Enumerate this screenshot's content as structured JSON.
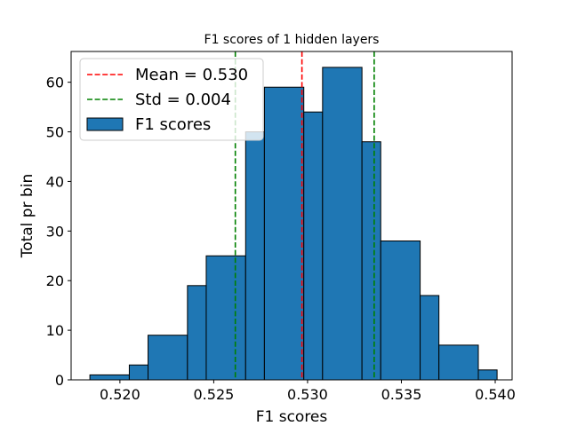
{
  "chart_data": {
    "type": "bar",
    "title": "F1 scores of 1 hidden layers",
    "xlabel": "F1 scores",
    "ylabel": "Total pr bin",
    "xlim": [
      0.5174,
      0.5409
    ],
    "ylim": [
      0,
      66.2
    ],
    "x_ticks": [
      0.52,
      0.525,
      0.53,
      0.535,
      0.54
    ],
    "x_tick_labels": [
      "0.520",
      "0.525",
      "0.530",
      "0.535",
      "0.540"
    ],
    "y_ticks": [
      0,
      10,
      20,
      30,
      40,
      50,
      60
    ],
    "y_tick_labels": [
      "0",
      "10",
      "20",
      "30",
      "40",
      "50",
      "60"
    ],
    "bin_edges": [
      0.5184,
      0.5205,
      0.5215,
      0.5236,
      0.5246,
      0.5267,
      0.5277,
      0.5298,
      0.5308,
      0.5329,
      0.5339,
      0.536,
      0.537,
      0.5391,
      0.5401
    ],
    "bins": [
      {
        "x0": 0.5184,
        "x1": 0.5205,
        "value": 1
      },
      {
        "x0": 0.5205,
        "x1": 0.5215,
        "value": 3
      },
      {
        "x0": 0.5215,
        "x1": 0.5236,
        "value": 9
      },
      {
        "x0": 0.5236,
        "x1": 0.5246,
        "value": 19
      },
      {
        "x0": 0.5246,
        "x1": 0.5267,
        "value": 25
      },
      {
        "x0": 0.5267,
        "x1": 0.5277,
        "value": 50
      },
      {
        "x0": 0.5277,
        "x1": 0.5298,
        "value": 59
      },
      {
        "x0": 0.5298,
        "x1": 0.5308,
        "value": 54
      },
      {
        "x0": 0.5308,
        "x1": 0.5329,
        "value": 63
      },
      {
        "x0": 0.5329,
        "x1": 0.5339,
        "value": 48
      },
      {
        "x0": 0.5339,
        "x1": 0.536,
        "value": 28
      },
      {
        "x0": 0.536,
        "x1": 0.537,
        "value": 17
      },
      {
        "x0": 0.537,
        "x1": 0.5391,
        "value": 7
      },
      {
        "x0": 0.5391,
        "x1": 0.5401,
        "value": 2
      }
    ],
    "bar_color": "#1f77b4",
    "bar_edge_color": "#000000",
    "lines": [
      {
        "name": "Mean = 0.530",
        "x": 0.5297,
        "color": "#ff0000",
        "style": "dashed"
      },
      {
        "name": "Std = 0.004",
        "x": 0.52615,
        "color": "#008000",
        "style": "dashed"
      },
      {
        "name": "",
        "x": 0.53355,
        "color": "#008000",
        "style": "dashed"
      }
    ],
    "legend": {
      "placement": "top-left",
      "entries": [
        {
          "label": "Mean = 0.530",
          "kind": "line",
          "color": "#ff0000"
        },
        {
          "label": "Std = 0.004",
          "kind": "line",
          "color": "#008000"
        },
        {
          "label": "F1 scores",
          "kind": "patch",
          "color": "#1f77b4"
        }
      ]
    },
    "grid": false
  }
}
